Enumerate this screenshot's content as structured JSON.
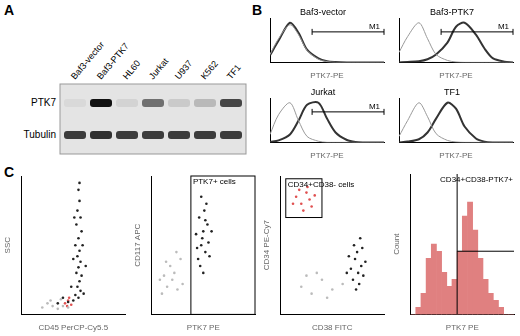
{
  "panel_labels": [
    "A",
    "B",
    "C"
  ],
  "western_blot": {
    "lanes": [
      "Baf3-vector",
      "Baf3-PTK7",
      "HL60",
      "Jurkat",
      "U937",
      "K562",
      "TF1"
    ],
    "rows": [
      {
        "label": "PTK7",
        "intensity": [
          0.05,
          1.0,
          0.08,
          0.55,
          0.12,
          0.2,
          0.75
        ]
      },
      {
        "label": "Tubulin",
        "intensity": [
          0.8,
          0.85,
          0.8,
          0.8,
          0.8,
          0.8,
          0.8
        ]
      }
    ]
  },
  "chart_data": [
    {
      "type": "line",
      "title": "Baf3-vector",
      "x_label": "PTK7-PE",
      "log": "x",
      "tick_labels": false,
      "xlim": [
        1,
        10000
      ],
      "ylim": [
        0,
        110
      ],
      "x": [
        1,
        2,
        5,
        10,
        20,
        50,
        100,
        200,
        500,
        1000,
        2000,
        5000,
        10000
      ],
      "series": [
        {
          "color": "#999999",
          "values": [
            20,
            60,
            95,
            70,
            30,
            8,
            2,
            0,
            0,
            0,
            0,
            0,
            0
          ]
        },
        {
          "color": "#333333",
          "values": [
            18,
            55,
            100,
            75,
            32,
            10,
            3,
            1,
            0,
            0,
            0,
            0,
            0
          ]
        }
      ],
      "annotations": [
        {
          "label": "M1",
          "range": [
            30,
            10000
          ]
        }
      ]
    },
    {
      "type": "line",
      "title": "Baf3-PTK7",
      "x_label": "PTK7-PE",
      "log": "x",
      "tick_labels": false,
      "xlim": [
        1,
        10000
      ],
      "ylim": [
        0,
        110
      ],
      "x": [
        1,
        2,
        5,
        10,
        20,
        50,
        100,
        200,
        500,
        1000,
        2000,
        5000,
        10000
      ],
      "series": [
        {
          "color": "#999999",
          "values": [
            25,
            65,
            100,
            60,
            20,
            5,
            1,
            0,
            0,
            0,
            0,
            0,
            0
          ]
        },
        {
          "color": "#333333",
          "values": [
            0,
            1,
            3,
            8,
            20,
            50,
            90,
            100,
            70,
            35,
            10,
            2,
            0
          ]
        }
      ],
      "annotations": [
        {
          "label": "M1",
          "range": [
            30,
            10000
          ]
        }
      ]
    },
    {
      "type": "line",
      "title": "Jurkat",
      "x_label": "PTK7-PE",
      "log": "x",
      "tick_labels": false,
      "xlim": [
        1,
        10000
      ],
      "ylim": [
        0,
        110
      ],
      "x": [
        1,
        2,
        5,
        10,
        20,
        50,
        100,
        200,
        500,
        1000,
        2000,
        5000,
        10000
      ],
      "series": [
        {
          "color": "#999999",
          "values": [
            20,
            70,
            100,
            55,
            15,
            3,
            0,
            0,
            0,
            0,
            0,
            0,
            0
          ]
        },
        {
          "color": "#333333",
          "values": [
            1,
            5,
            20,
            55,
            95,
            100,
            60,
            25,
            6,
            1,
            0,
            0,
            0
          ]
        }
      ],
      "annotations": [
        {
          "label": "M1",
          "range": [
            30,
            10000
          ]
        }
      ]
    },
    {
      "type": "line",
      "title": "TF1",
      "x_label": "PTK7-PE",
      "log": "x",
      "tick_labels": false,
      "xlim": [
        1,
        10000
      ],
      "ylim": [
        0,
        110
      ],
      "x": [
        1,
        2,
        5,
        10,
        20,
        50,
        100,
        200,
        500,
        1000,
        2000,
        5000,
        10000
      ],
      "series": [
        {
          "color": "#999999",
          "values": [
            15,
            55,
            100,
            65,
            22,
            5,
            1,
            0,
            0,
            0,
            0,
            0,
            0
          ]
        },
        {
          "color": "#333333",
          "values": [
            0,
            2,
            8,
            25,
            60,
            100,
            85,
            40,
            10,
            2,
            0,
            0,
            0
          ]
        }
      ]
    },
    {
      "type": "scatter",
      "x_label": "CD45 PerCP-Cy5.5",
      "y_label": "SSC",
      "tick_labels": false,
      "xlim": [
        0,
        100
      ],
      "ylim": [
        0,
        100
      ],
      "series": [
        {
          "color": "#bbbbbb",
          "x": [
            20,
            25,
            30,
            35,
            40,
            45,
            28,
            38
          ],
          "values": [
            5,
            8,
            6,
            4,
            6,
            5,
            10,
            11
          ]
        },
        {
          "color": "#222222",
          "x": [
            55,
            56,
            54,
            57,
            53,
            58,
            55,
            52,
            56,
            54,
            57,
            55,
            53,
            58,
            56,
            54,
            57,
            52,
            55,
            50,
            45,
            40,
            35,
            60,
            48,
            62,
            50,
            59,
            51,
            56
          ],
          "values": [
            90,
            82,
            75,
            70,
            65,
            60,
            55,
            50,
            46,
            42,
            38,
            34,
            30,
            28,
            24,
            20,
            17,
            14,
            12,
            10,
            9,
            12,
            8,
            15,
            20,
            35,
            40,
            50,
            70,
            95
          ]
        },
        {
          "color": "#e05050",
          "x": [
            42,
            45,
            48,
            46,
            44
          ],
          "values": [
            8,
            10,
            7,
            12,
            6
          ]
        }
      ]
    },
    {
      "type": "scatter",
      "x_label": "PTK7 PE",
      "y_label": "CD117 APC",
      "tick_labels": false,
      "xlim": [
        0,
        100
      ],
      "ylim": [
        0,
        100
      ],
      "series": [
        {
          "color": "#bbbbbb",
          "x": [
            10,
            15,
            12,
            20,
            18,
            25,
            22,
            28,
            14,
            30,
            8,
            24
          ],
          "values": [
            15,
            20,
            28,
            25,
            35,
            18,
            30,
            40,
            38,
            22,
            25,
            45
          ]
        },
        {
          "color": "#222222",
          "x": [
            45,
            48,
            50,
            52,
            46,
            54,
            49,
            51,
            47,
            55,
            43,
            53,
            50,
            56,
            44,
            52,
            48,
            58
          ],
          "values": [
            40,
            50,
            60,
            45,
            70,
            65,
            55,
            75,
            35,
            52,
            58,
            80,
            30,
            42,
            48,
            68,
            85,
            60
          ]
        }
      ],
      "annotations": [
        {
          "label": "PTK7+ cells",
          "xrange": [
            38,
            100
          ],
          "yrange": [
            0,
            100
          ]
        }
      ]
    },
    {
      "type": "scatter",
      "x_label": "CD38 FITC",
      "y_label": "CD34 PE-Cy7",
      "tick_labels": false,
      "xlim": [
        0,
        100
      ],
      "ylim": [
        0,
        100
      ],
      "series": [
        {
          "color": "#bbbbbb",
          "x": [
            20,
            30,
            40,
            50,
            60,
            35,
            45,
            25
          ],
          "values": [
            20,
            15,
            25,
            18,
            22,
            30,
            12,
            28
          ]
        },
        {
          "color": "#222222",
          "x": [
            70,
            75,
            72,
            78,
            80,
            74,
            68,
            76,
            82,
            71,
            66,
            79,
            73,
            77,
            64
          ],
          "values": [
            25,
            30,
            40,
            35,
            28,
            45,
            33,
            22,
            38,
            50,
            42,
            48,
            18,
            55,
            30
          ]
        },
        {
          "color": "#e05050",
          "x": [
            15,
            20,
            25,
            30,
            18,
            28,
            22,
            33,
            12,
            26
          ],
          "values": [
            85,
            80,
            88,
            78,
            90,
            83,
            75,
            86,
            80,
            92
          ]
        }
      ],
      "annotations": [
        {
          "label": "CD34+CD38- cells",
          "xrange": [
            5,
            40
          ],
          "yrange": [
            70,
            98
          ]
        }
      ]
    },
    {
      "type": "histogram",
      "x_label": "PTK7 PE",
      "y_label": "Count",
      "tick_labels": false,
      "color": "#e08080",
      "xlim": [
        0,
        100
      ],
      "ylim": [
        0,
        20
      ],
      "bins": [
        0,
        5,
        10,
        15,
        20,
        25,
        30,
        35,
        40,
        45,
        50,
        55,
        60,
        65,
        70,
        75,
        80,
        85,
        90,
        95,
        100
      ],
      "counts": [
        0,
        1,
        3,
        8,
        10,
        9,
        6,
        4,
        5,
        9,
        14,
        16,
        12,
        8,
        5,
        3,
        2,
        1,
        0,
        0
      ],
      "annotations": [
        {
          "label": "CD34+CD38-PTK7+",
          "x": 45,
          "y": 9
        }
      ]
    }
  ]
}
